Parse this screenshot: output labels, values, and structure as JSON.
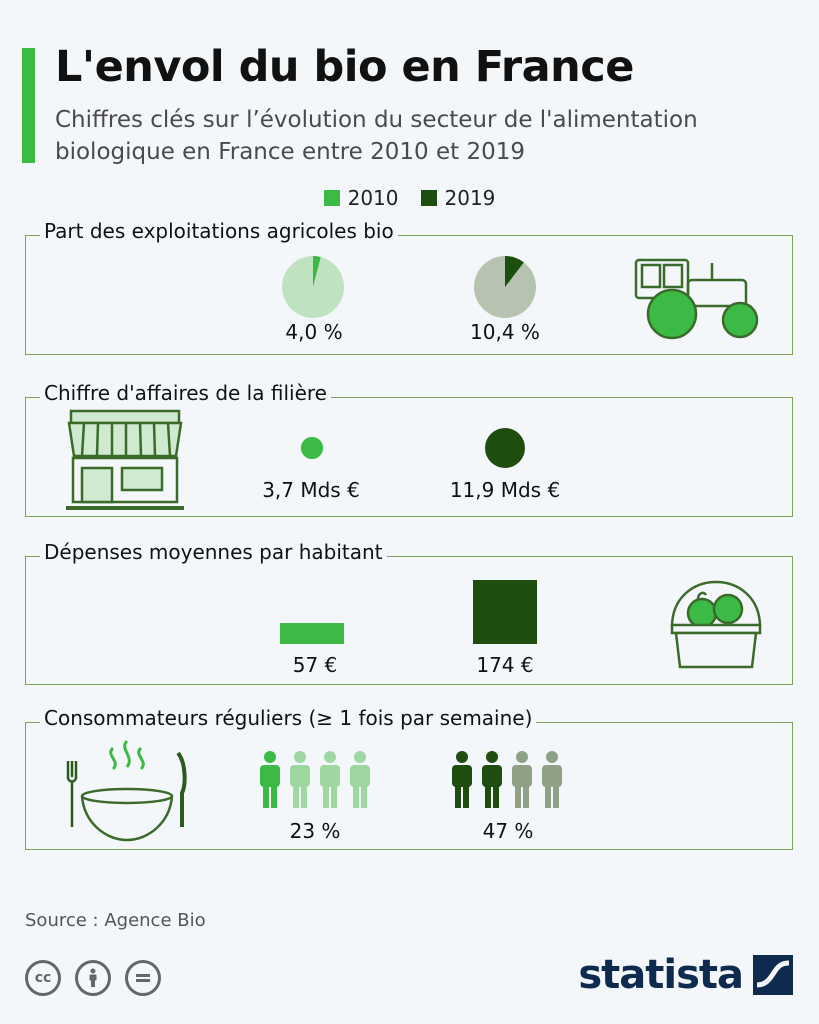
{
  "title": "L'envol du bio en France",
  "subtitle": "Chiffres clés sur l’évolution du secteur de l'alimentation biologique en France entre 2010 et 2019",
  "legend": [
    {
      "label": "2010",
      "color": "#3bba45"
    },
    {
      "label": "2019",
      "color": "#1e4d10"
    }
  ],
  "colors": {
    "light": "#3bba45",
    "dark": "#1e4d10",
    "pie_bg_2010": "#bfe3c0",
    "pie_bg_2019": "#b6c3b0",
    "person_light_2010": "#9ed8a0",
    "person_light_2019": "#8ea186"
  },
  "chart_data": [
    {
      "type": "pie",
      "title": "Part des exploitations agricoles bio",
      "categories": [
        "2010",
        "2019"
      ],
      "values": [
        4.0,
        10.4
      ],
      "unit": "%",
      "labels": [
        "4,0 %",
        "10,4 %"
      ],
      "icon": "tractor-icon"
    },
    {
      "type": "bubble",
      "title": "Chiffre d'affaires de la filière",
      "categories": [
        "2010",
        "2019"
      ],
      "values": [
        3.7,
        11.9
      ],
      "unit": "Mds €",
      "labels": [
        "3,7 Mds €",
        "11,9 Mds €"
      ],
      "icon": "shop-icon"
    },
    {
      "type": "area",
      "title": "Dépenses moyennes par habitant",
      "categories": [
        "2010",
        "2019"
      ],
      "values": [
        57,
        174
      ],
      "unit": "€",
      "labels": [
        "57 €",
        "174 €"
      ],
      "icon": "basket-icon"
    },
    {
      "type": "pictogram",
      "title": "Consommateurs réguliers (≥ 1 fois par semaine)",
      "categories": [
        "2010",
        "2019"
      ],
      "values": [
        23,
        47
      ],
      "unit": "%",
      "labels": [
        "23 %",
        "47 %"
      ],
      "icon": "bowl-icon"
    }
  ],
  "source": "Source : Agence Bio",
  "brand": "statista",
  "license_icons": [
    "cc-icon",
    "by-icon",
    "nd-icon"
  ]
}
